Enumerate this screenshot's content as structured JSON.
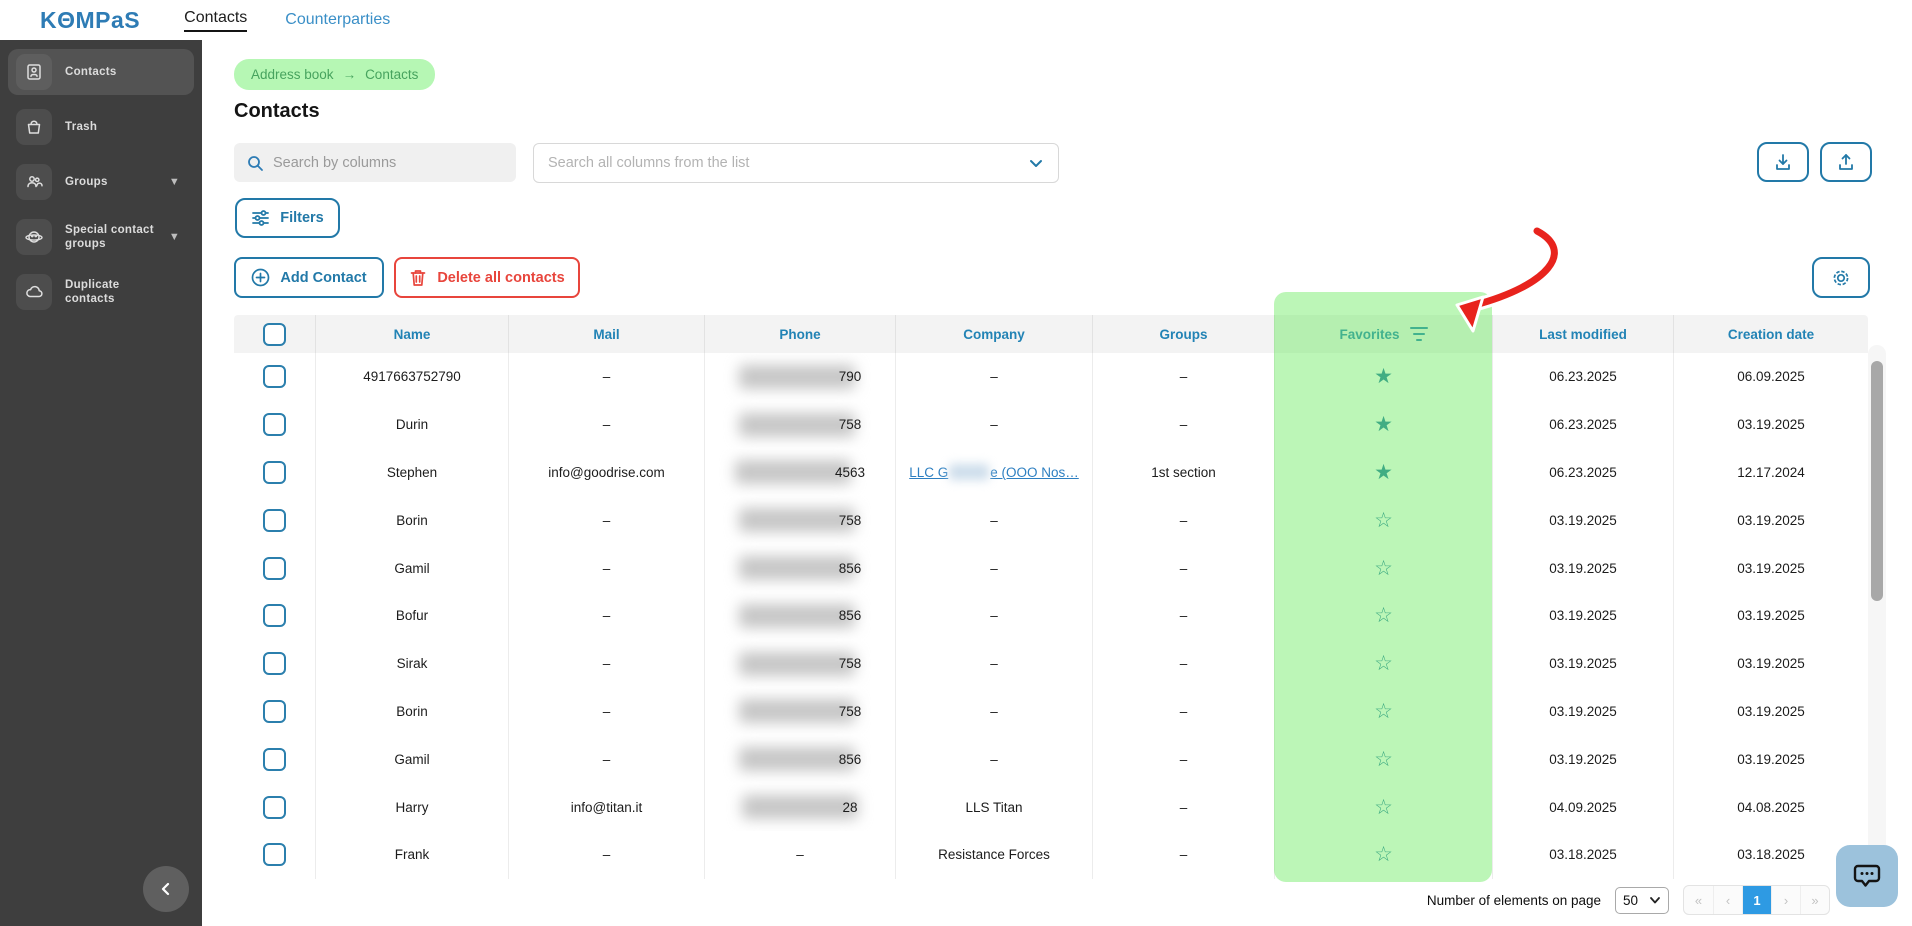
{
  "app": {
    "logo": "KΘMPaS",
    "nav": [
      {
        "label": "Contacts",
        "active": true
      },
      {
        "label": "Counterparties",
        "active": false
      }
    ]
  },
  "sidebar": {
    "items": [
      {
        "label": "Contacts",
        "icon": "contact-card",
        "active": true,
        "expandable": false
      },
      {
        "label": "Trash",
        "icon": "trash-basket",
        "active": false,
        "expandable": false
      },
      {
        "label": "Groups",
        "icon": "people",
        "active": false,
        "expandable": true
      },
      {
        "label": "Special contact groups",
        "icon": "bot",
        "active": false,
        "expandable": true
      },
      {
        "label": "Duplicate contacts",
        "icon": "cloud",
        "active": false,
        "expandable": false
      }
    ]
  },
  "breadcrumb": {
    "root": "Address book",
    "arrow": "→",
    "current": "Contacts"
  },
  "page": {
    "title": "Contacts"
  },
  "search": {
    "columns_placeholder": "Search by columns",
    "all_columns_placeholder": "Search all columns from the list"
  },
  "toolbar": {
    "filters": "Filters",
    "add_contact": "Add Contact",
    "delete_all": "Delete all contacts"
  },
  "table": {
    "headers": [
      "Name",
      "Mail",
      "Phone",
      "Company",
      "Groups",
      "Favorites",
      "Last modified",
      "Creation date"
    ],
    "star_filled": "★",
    "star_outline": "☆",
    "dash": "–",
    "rows": [
      {
        "name": "4917663752790",
        "mail": "–",
        "phone_redacted": true,
        "phone_digits": "790",
        "company": "–",
        "groups": "–",
        "favorite": true,
        "modified": "06.23.2025",
        "created": "06.09.2025"
      },
      {
        "name": "Durin",
        "mail": "–",
        "phone_redacted": true,
        "phone_digits": "758",
        "company": "–",
        "groups": "–",
        "favorite": true,
        "modified": "06.23.2025",
        "created": "03.19.2025"
      },
      {
        "name": "Stephen",
        "mail": "info@goodrise.com",
        "phone_redacted": true,
        "phone_digits": "4563",
        "company_link": {
          "prefix": "LLC G",
          "redacted": true,
          "suffix": "e (OOO Nos…"
        },
        "groups": "1st section",
        "favorite": true,
        "modified": "06.23.2025",
        "created": "12.17.2024"
      },
      {
        "name": "Borin",
        "mail": "–",
        "phone_redacted": true,
        "phone_digits": "758",
        "company": "–",
        "groups": "–",
        "favorite": false,
        "modified": "03.19.2025",
        "created": "03.19.2025"
      },
      {
        "name": "Gamil",
        "mail": "–",
        "phone_redacted": true,
        "phone_digits": "856",
        "company": "–",
        "groups": "–",
        "favorite": false,
        "modified": "03.19.2025",
        "created": "03.19.2025"
      },
      {
        "name": "Bofur",
        "mail": "–",
        "phone_redacted": true,
        "phone_digits": "856",
        "company": "–",
        "groups": "–",
        "favorite": false,
        "modified": "03.19.2025",
        "created": "03.19.2025"
      },
      {
        "name": "Sirak",
        "mail": "–",
        "phone_redacted": true,
        "phone_digits": "758",
        "company": "–",
        "groups": "–",
        "favorite": false,
        "modified": "03.19.2025",
        "created": "03.19.2025"
      },
      {
        "name": "Borin",
        "mail": "–",
        "phone_redacted": true,
        "phone_digits": "758",
        "company": "–",
        "groups": "–",
        "favorite": false,
        "modified": "03.19.2025",
        "created": "03.19.2025"
      },
      {
        "name": "Gamil",
        "mail": "–",
        "phone_redacted": true,
        "phone_digits": "856",
        "company": "–",
        "groups": "–",
        "favorite": false,
        "modified": "03.19.2025",
        "created": "03.19.2025"
      },
      {
        "name": "Harry",
        "mail": "info@titan.it",
        "phone_redacted": true,
        "phone_digits": "28",
        "company": "LLS Titan",
        "groups": "–",
        "favorite": false,
        "modified": "04.09.2025",
        "created": "04.08.2025"
      },
      {
        "name": "Frank",
        "mail": "–",
        "phone_redacted": false,
        "phone": "–",
        "company": "Resistance Forces",
        "groups": "–",
        "favorite": false,
        "modified": "03.18.2025",
        "created": "03.18.2025"
      }
    ]
  },
  "pagination": {
    "label": "Number of elements on page",
    "page_size": "50",
    "first": "«",
    "prev": "‹",
    "current_page": "1",
    "next": "›",
    "last": "»"
  },
  "colors": {
    "accent_blue": "#2279a8",
    "danger_red": "#e8453c",
    "highlight_green": "#b6f7b4",
    "favorites_overlay": "rgba(106,235,95,0.45)",
    "sidebar_bg": "#3e3e3e",
    "active_page_blue": "#2e9ae3",
    "star_teal": "#1f7aa0",
    "arrow_red": "#e8231d"
  }
}
